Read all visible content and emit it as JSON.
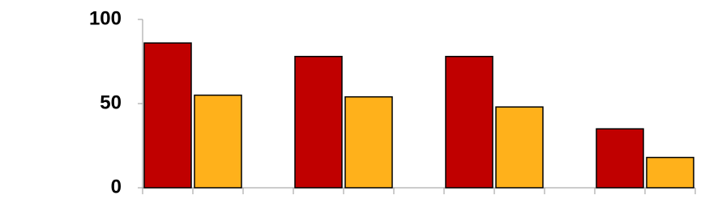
{
  "chart_data": {
    "type": "bar",
    "categories": [
      null,
      null,
      null,
      null
    ],
    "series": [
      {
        "color": "#c00000",
        "values": [
          86,
          78,
          78,
          35
        ]
      },
      {
        "color": "#ffb11b",
        "values": [
          55,
          54,
          48,
          18
        ]
      }
    ],
    "ylim": [
      0,
      100
    ],
    "yticks": [
      0,
      50,
      100
    ],
    "grid": false
  }
}
